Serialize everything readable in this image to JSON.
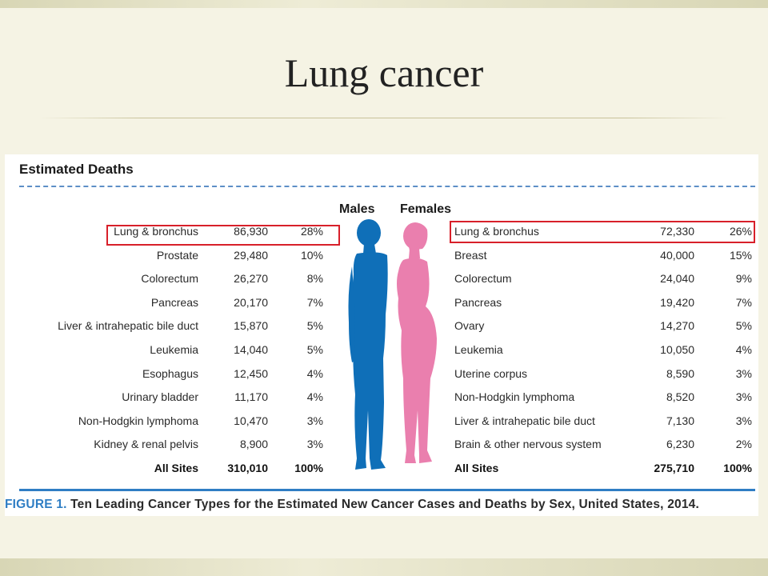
{
  "slide": {
    "title": "Lung cancer"
  },
  "figure": {
    "heading": "Estimated Deaths",
    "males_label": "Males",
    "females_label": "Females",
    "caption_label": "FIGURE 1.",
    "caption_text": "Ten Leading Cancer Types for the Estimated New Cancer Cases and Deaths by Sex, United States, 2014.",
    "highlight_color": "#d8202a",
    "male_color": "#0f6fb8",
    "female_color": "#ea7fae",
    "males": [
      {
        "site": "Lung & bronchus",
        "deaths": "86,930",
        "pct": "28%"
      },
      {
        "site": "Prostate",
        "deaths": "29,480",
        "pct": "10%"
      },
      {
        "site": "Colorectum",
        "deaths": "26,270",
        "pct": "8%"
      },
      {
        "site": "Pancreas",
        "deaths": "20,170",
        "pct": "7%"
      },
      {
        "site": "Liver & intrahepatic bile duct",
        "deaths": "15,870",
        "pct": "5%"
      },
      {
        "site": "Leukemia",
        "deaths": "14,040",
        "pct": "5%"
      },
      {
        "site": "Esophagus",
        "deaths": "12,450",
        "pct": "4%"
      },
      {
        "site": "Urinary bladder",
        "deaths": "11,170",
        "pct": "4%"
      },
      {
        "site": "Non-Hodgkin lymphoma",
        "deaths": "10,470",
        "pct": "3%"
      },
      {
        "site": "Kidney & renal pelvis",
        "deaths": "8,900",
        "pct": "3%"
      },
      {
        "site": "All Sites",
        "deaths": "310,010",
        "pct": "100%"
      }
    ],
    "females": [
      {
        "site": "Lung & bronchus",
        "deaths": "72,330",
        "pct": "26%"
      },
      {
        "site": "Breast",
        "deaths": "40,000",
        "pct": "15%"
      },
      {
        "site": "Colorectum",
        "deaths": "24,040",
        "pct": "9%"
      },
      {
        "site": "Pancreas",
        "deaths": "19,420",
        "pct": "7%"
      },
      {
        "site": "Ovary",
        "deaths": "14,270",
        "pct": "5%"
      },
      {
        "site": "Leukemia",
        "deaths": "10,050",
        "pct": "4%"
      },
      {
        "site": "Uterine corpus",
        "deaths": "8,590",
        "pct": "3%"
      },
      {
        "site": "Non-Hodgkin lymphoma",
        "deaths": "8,520",
        "pct": "3%"
      },
      {
        "site": "Liver & intrahepatic bile duct",
        "deaths": "7,130",
        "pct": "3%"
      },
      {
        "site": "Brain & other nervous system",
        "deaths": "6,230",
        "pct": "2%"
      },
      {
        "site": "All Sites",
        "deaths": "275,710",
        "pct": "100%"
      }
    ]
  }
}
